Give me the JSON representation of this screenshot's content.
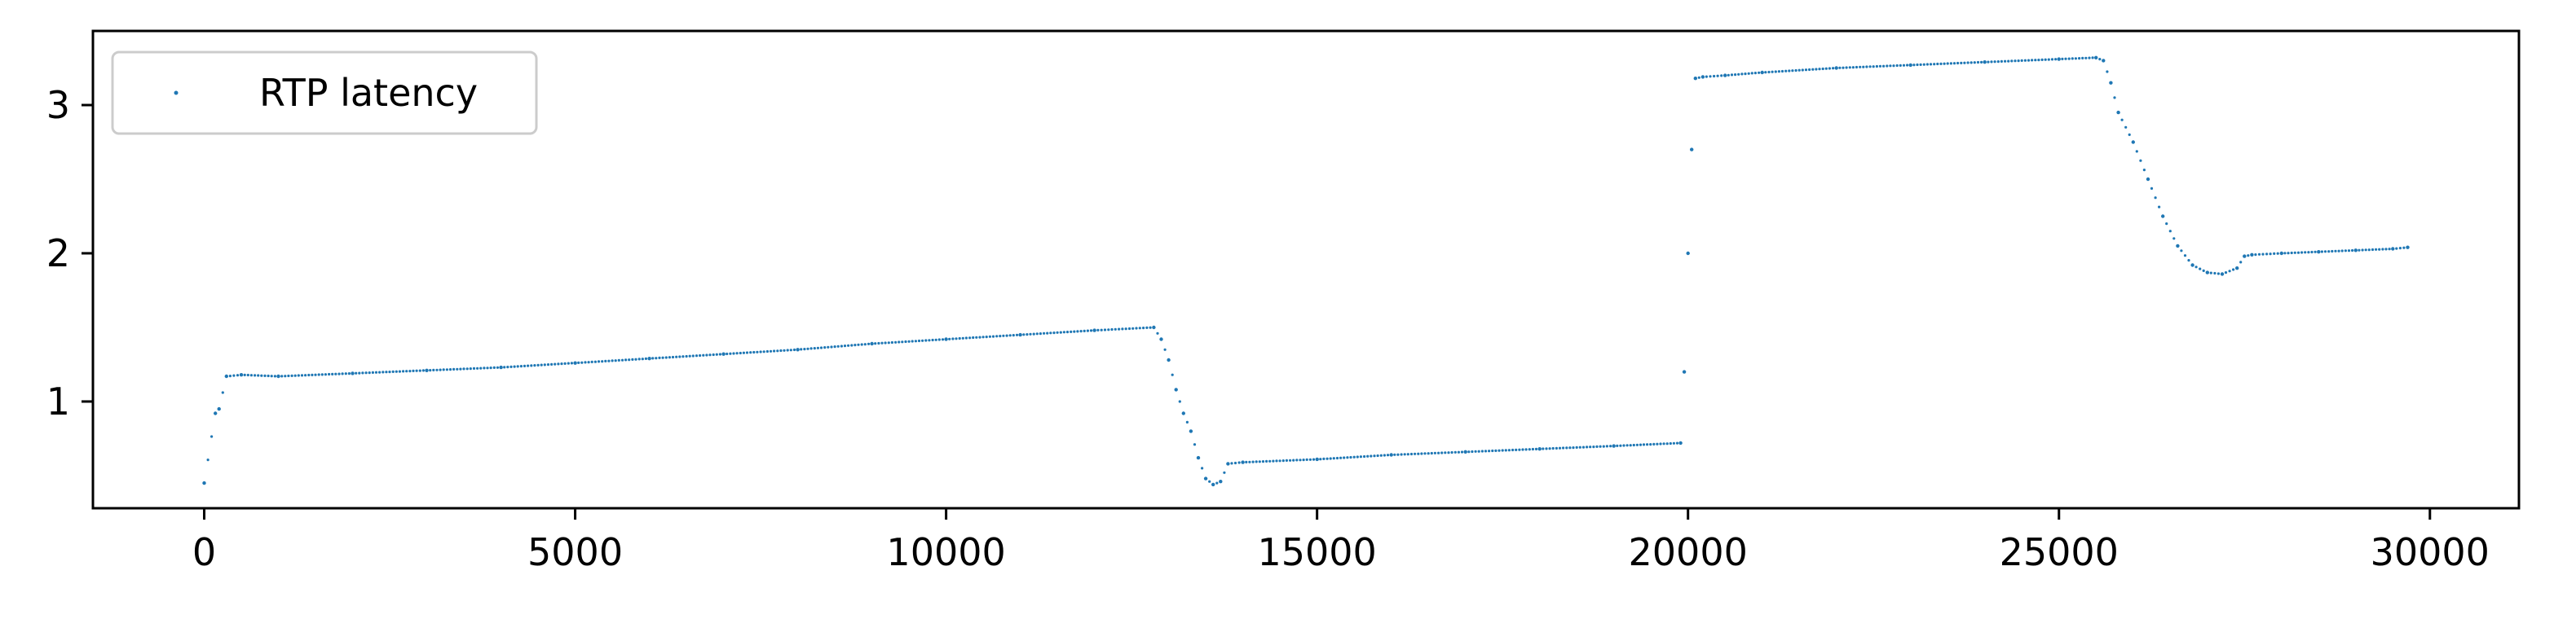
{
  "chart_data": {
    "type": "scatter",
    "title": "",
    "xlabel": "",
    "ylabel": "",
    "xlim": [
      -1500,
      31200
    ],
    "ylim": [
      0.28,
      3.5
    ],
    "x_ticks": [
      0,
      5000,
      10000,
      15000,
      20000,
      25000,
      30000
    ],
    "x_tick_labels": [
      "0",
      "5000",
      "10000",
      "15000",
      "20000",
      "25000",
      "30000"
    ],
    "y_ticks": [
      1,
      2,
      3
    ],
    "y_tick_labels": [
      "1",
      "2",
      "3"
    ],
    "grid": false,
    "legend": {
      "position": "top-left",
      "entries": [
        "RTP latency"
      ]
    },
    "series": [
      {
        "name": "RTP latency",
        "color": "#1f77b4",
        "x": [
          0,
          150,
          200,
          300,
          500,
          1000,
          2000,
          3000,
          4000,
          5000,
          6000,
          7000,
          8000,
          9000,
          10000,
          11000,
          12000,
          12800,
          12900,
          13000,
          13100,
          13200,
          13300,
          13400,
          13500,
          13600,
          13700,
          13800,
          14000,
          15000,
          16000,
          17000,
          18000,
          19000,
          19900,
          19950,
          20000,
          20050,
          20100,
          20200,
          20500,
          21000,
          22000,
          23000,
          24000,
          25000,
          25500,
          25600,
          25700,
          25800,
          26000,
          26200,
          26400,
          26600,
          26800,
          27000,
          27200,
          27400,
          27500,
          27600,
          28000,
          28500,
          29000,
          29500,
          29700
        ],
        "y": [
          0.45,
          0.92,
          0.95,
          1.17,
          1.18,
          1.17,
          1.19,
          1.21,
          1.23,
          1.26,
          1.29,
          1.32,
          1.35,
          1.39,
          1.42,
          1.45,
          1.48,
          1.5,
          1.42,
          1.28,
          1.08,
          0.92,
          0.8,
          0.62,
          0.48,
          0.44,
          0.46,
          0.58,
          0.59,
          0.61,
          0.64,
          0.66,
          0.68,
          0.7,
          0.72,
          1.2,
          2.0,
          2.7,
          3.18,
          3.19,
          3.2,
          3.22,
          3.25,
          3.27,
          3.29,
          3.31,
          3.32,
          3.3,
          3.15,
          2.95,
          2.75,
          2.5,
          2.25,
          2.05,
          1.92,
          1.87,
          1.86,
          1.9,
          1.98,
          1.99,
          2.0,
          2.01,
          2.02,
          2.03,
          2.04
        ]
      }
    ]
  }
}
